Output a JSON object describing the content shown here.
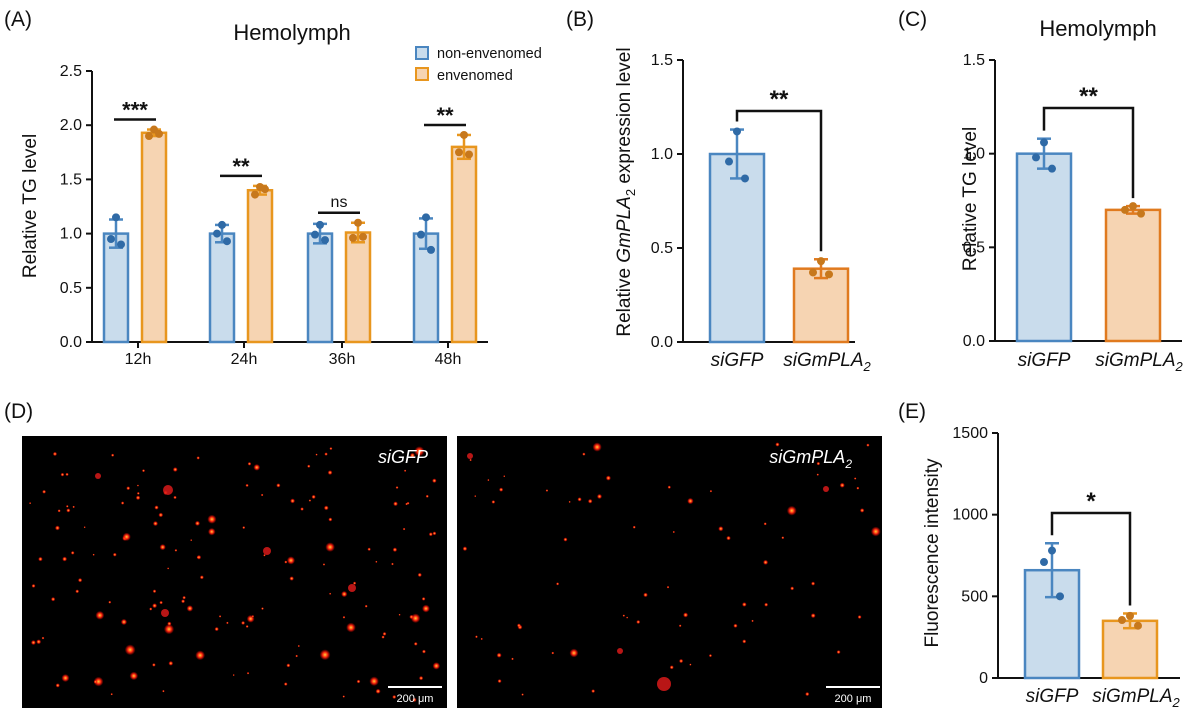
{
  "colors": {
    "blue_stroke": "#4a86c0",
    "blue_fill": "#c9dcec",
    "blue_dot": "#2f6aa6",
    "orange_stroke": "#e8961e",
    "orange_fill": "#f6d4b2",
    "orange_dot": "#c7781c",
    "orange_stroke_bc": "#e07a1f"
  },
  "panels": {
    "A": {
      "letter": "(A)"
    },
    "B": {
      "letter": "(B)"
    },
    "C": {
      "letter": "(C)"
    },
    "D": {
      "letter": "(D)",
      "scale_bar": "200 μm",
      "images": [
        {
          "label": "siGFP"
        },
        {
          "label": "siGmPLA"
        }
      ]
    },
    "E": {
      "letter": "(E)"
    }
  },
  "chart_data": [
    {
      "panel": "A",
      "type": "bar",
      "title": "Hemolymph",
      "ylabel": "Relative TG level",
      "ylim": [
        0,
        2.5
      ],
      "yticks": [
        "0.0",
        "0.5",
        "1.0",
        "1.5",
        "2.0",
        "2.5"
      ],
      "categories": [
        "12h",
        "24h",
        "36h",
        "48h"
      ],
      "legend_position": "top-right",
      "series": [
        {
          "name": "non-envenomed",
          "values": [
            1.0,
            1.0,
            1.0,
            1.0
          ],
          "errors": [
            0.13,
            0.08,
            0.09,
            0.14
          ],
          "points": [
            [
              1.15,
              0.95,
              0.9
            ],
            [
              1.08,
              1.0,
              0.93
            ],
            [
              1.08,
              0.99,
              0.94
            ],
            [
              1.15,
              0.99,
              0.85
            ]
          ]
        },
        {
          "name": "envenomed",
          "values": [
            1.93,
            1.4,
            1.01,
            1.8
          ],
          "errors": [
            0.03,
            0.04,
            0.09,
            0.11
          ],
          "points": [
            [
              1.96,
              1.9,
              1.92
            ],
            [
              1.43,
              1.36,
              1.41
            ],
            [
              1.1,
              0.96,
              0.97
            ],
            [
              1.91,
              1.75,
              1.73
            ]
          ]
        }
      ],
      "annotations": [
        "***",
        "**",
        "ns",
        "**"
      ]
    },
    {
      "panel": "B",
      "type": "bar",
      "ylabel_pre": "Relative ",
      "ylabel_gene": "GmPLA",
      "ylabel_sub": "2",
      "ylabel_post": " expression level",
      "ylim": [
        0,
        1.5
      ],
      "yticks": [
        "0.0",
        "0.5",
        "1.0",
        "1.5"
      ],
      "categories": [
        "siGFP",
        "siGmPLA"
      ],
      "values": [
        1.0,
        0.39
      ],
      "errors": [
        0.13,
        0.05
      ],
      "points": [
        [
          1.12,
          0.96,
          0.87
        ],
        [
          0.43,
          0.37,
          0.36
        ]
      ],
      "annotation": "**"
    },
    {
      "panel": "C",
      "type": "bar",
      "title": "Hemolymph",
      "ylabel": "Relative TG level",
      "ylim": [
        0,
        1.5
      ],
      "yticks": [
        "0.0",
        "0.5",
        "1.0",
        "1.5"
      ],
      "categories": [
        "siGFP",
        "siGmPLA"
      ],
      "values": [
        1.0,
        0.7
      ],
      "errors": [
        0.08,
        0.02
      ],
      "points": [
        [
          1.06,
          0.98,
          0.92
        ],
        [
          0.72,
          0.7,
          0.68
        ]
      ],
      "annotation": "**"
    },
    {
      "panel": "E",
      "type": "bar",
      "ylabel": "Fluorescence intensity",
      "ylim": [
        0,
        1500
      ],
      "yticks": [
        "0",
        "500",
        "1000",
        "1500"
      ],
      "categories": [
        "siGFP",
        "siGmPLA"
      ],
      "values": [
        660,
        350
      ],
      "errors": [
        165,
        45
      ],
      "points": [
        [
          780,
          710,
          500
        ],
        [
          380,
          355,
          320
        ]
      ],
      "annotation": "*"
    }
  ]
}
